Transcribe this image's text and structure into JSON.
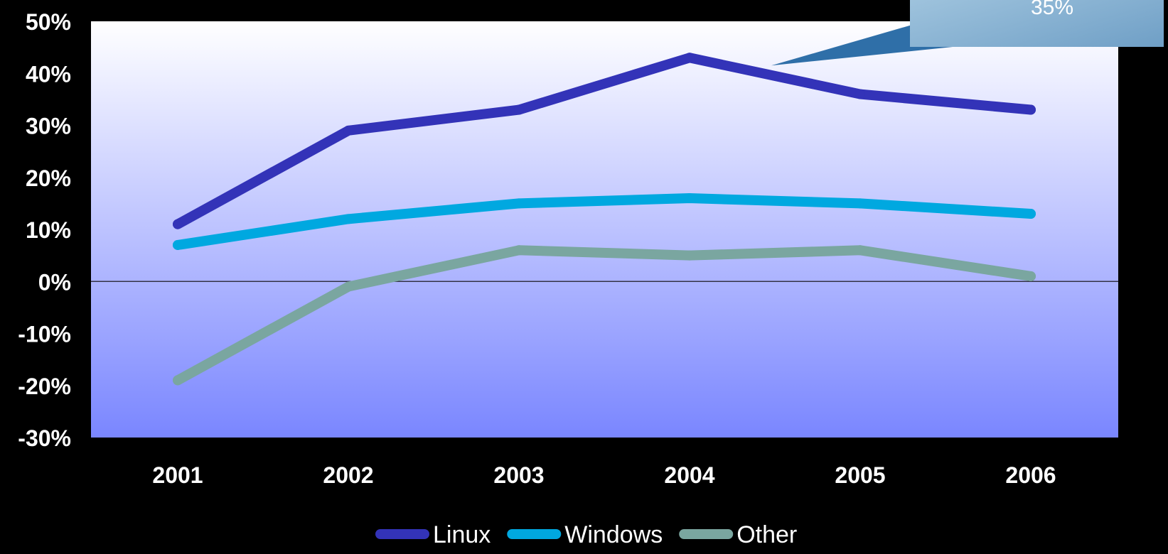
{
  "chart_data": {
    "type": "line",
    "categories": [
      "2001",
      "2002",
      "2003",
      "2004",
      "2005",
      "2006"
    ],
    "series": [
      {
        "name": "Linux",
        "color": "#3333b8",
        "values": [
          11,
          29,
          33,
          43,
          36,
          33
        ]
      },
      {
        "name": "Windows",
        "color": "#00a8e0",
        "values": [
          7,
          12,
          15,
          16,
          15,
          13
        ]
      },
      {
        "name": "Other",
        "color": "#7aa6a0",
        "values": [
          -19,
          -1,
          6,
          5,
          6,
          1
        ]
      }
    ],
    "y_ticks": [
      "50%",
      "40%",
      "30%",
      "20%",
      "10%",
      "0%",
      "-10%",
      "-20%",
      "-30%"
    ],
    "ylim": [
      -30,
      50
    ],
    "grid": false,
    "legend": "bottom",
    "callout": {
      "text": "35%",
      "points_to": "2004"
    },
    "colors": {
      "background": "#000000",
      "plot_top": "#ffffff",
      "plot_bottom": "#7a86ff",
      "zero_line": "#333344",
      "callout": "#7fb3d6"
    }
  }
}
